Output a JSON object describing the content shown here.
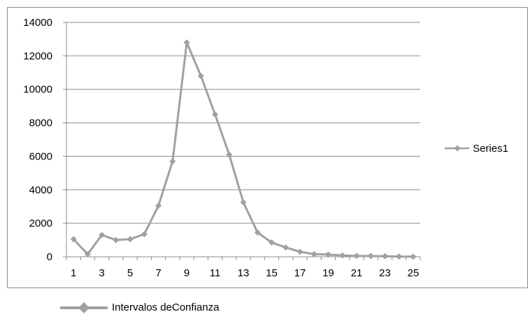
{
  "chart_data": {
    "type": "line",
    "x": [
      1,
      2,
      3,
      4,
      5,
      6,
      7,
      8,
      9,
      10,
      11,
      12,
      13,
      14,
      15,
      16,
      17,
      18,
      19,
      20,
      21,
      22,
      23,
      24,
      25
    ],
    "x_tick_labels": [
      "1",
      "3",
      "5",
      "7",
      "9",
      "11",
      "13",
      "15",
      "17",
      "19",
      "21",
      "23",
      "25"
    ],
    "y_tick_labels": [
      "0",
      "2000",
      "4000",
      "6000",
      "8000",
      "10000",
      "12000",
      "14000"
    ],
    "ylim": [
      0,
      14000
    ],
    "grid": "horizontal",
    "legend_position": "right",
    "series": [
      {
        "name": "Series1",
        "color": "#a0a0a0",
        "marker": "diamond",
        "values": [
          1050,
          150,
          1300,
          1000,
          1050,
          1350,
          3050,
          5700,
          12800,
          10800,
          8500,
          6100,
          3250,
          1450,
          850,
          550,
          300,
          150,
          130,
          80,
          50,
          40,
          30,
          10,
          5
        ]
      }
    ]
  },
  "footer_legend": {
    "label": "Intervalos deConfianza",
    "color": "#a0a0a0"
  }
}
